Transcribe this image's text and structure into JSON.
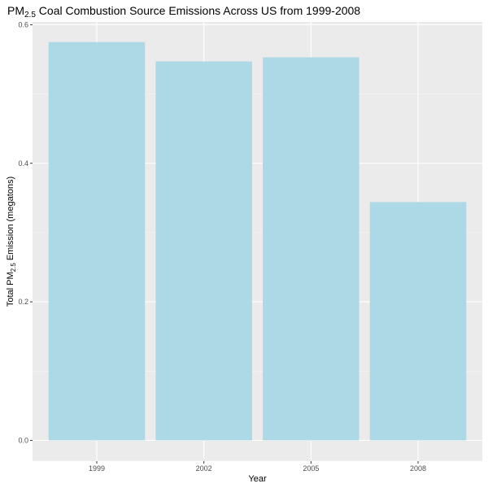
{
  "chart_data": {
    "type": "bar",
    "title_prefix": "PM",
    "title_sub": "2.5",
    "title_suffix": " Coal Combustion Source Emissions Across US from 1999-2008",
    "xlabel": "Year",
    "ylabel_prefix": "Total PM",
    "ylabel_sub": "2.5",
    "ylabel_suffix": " Emission (megatons)",
    "categories": [
      "1999",
      "2002",
      "2005",
      "2008"
    ],
    "values": [
      0.575,
      0.547,
      0.553,
      0.344
    ],
    "ylim": [
      -0.03,
      0.604
    ],
    "y_ticks": [
      0.0,
      0.2,
      0.4,
      0.6
    ],
    "y_tick_labels": [
      "0.0",
      "0.2",
      "0.4",
      "0.6"
    ],
    "grid": true,
    "legend": "none",
    "colors": {
      "bar": "#add8e6",
      "panel": "#ebebeb",
      "grid_major": "#ffffff",
      "grid_minor": "#f5f5f5"
    }
  }
}
